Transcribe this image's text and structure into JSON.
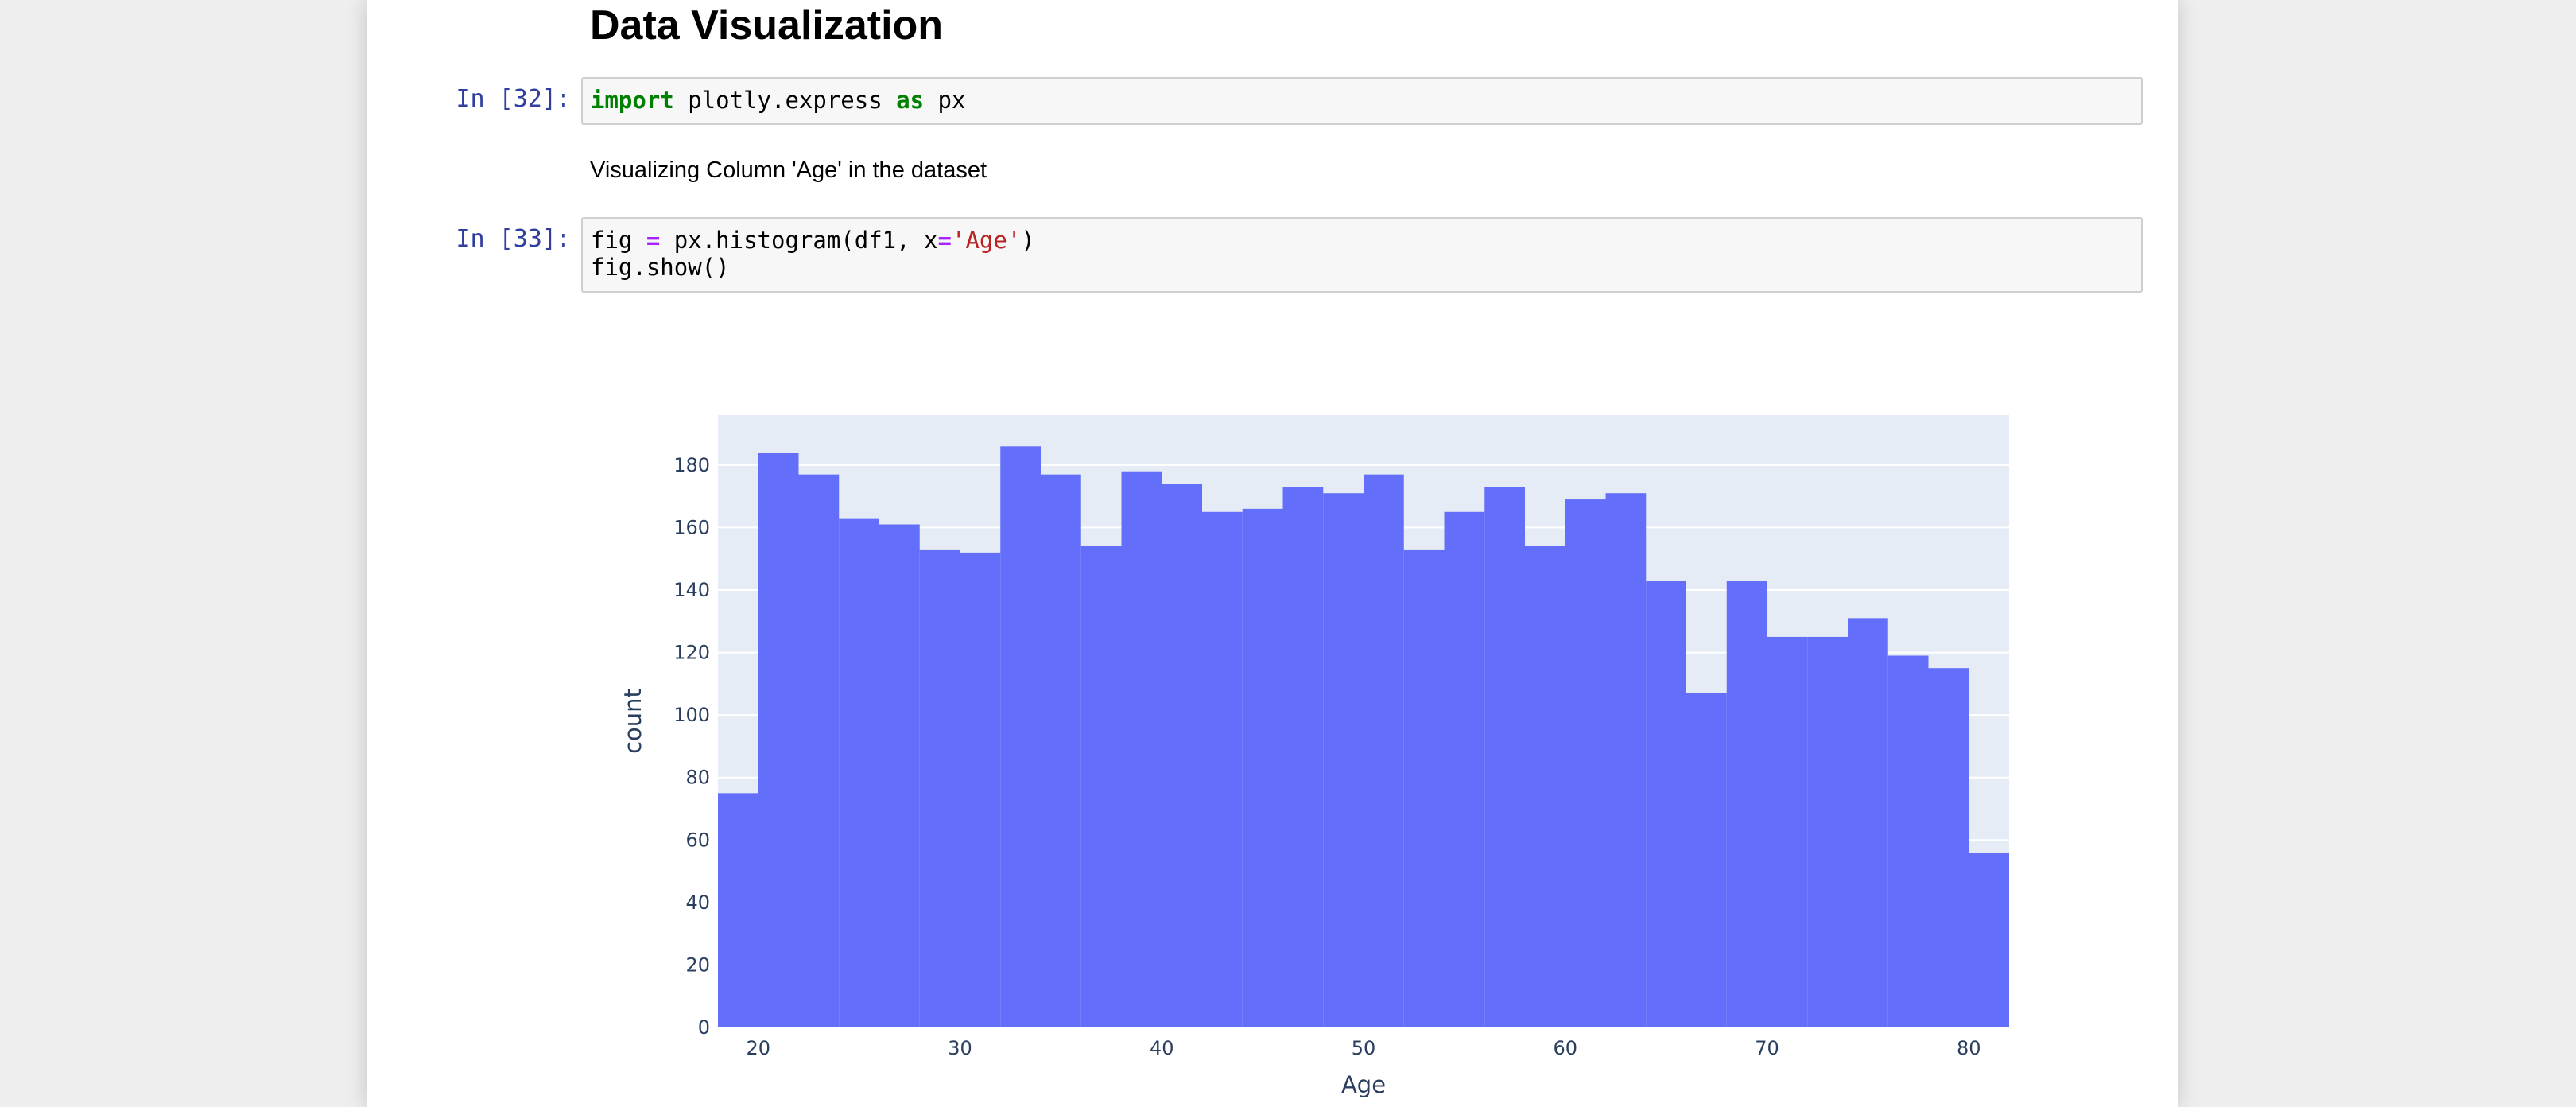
{
  "notebook": {
    "heading": "Data Visualization",
    "cells": [
      {
        "prompt": "In [32]:",
        "code_tokens": [
          {
            "text": "import",
            "kind": "kw"
          },
          {
            "text": " plotly.express ",
            "kind": "plain"
          },
          {
            "text": "as",
            "kind": "kw"
          },
          {
            "text": " px",
            "kind": "plain"
          }
        ]
      },
      {
        "prompt": "In [33]:",
        "line1_tokens": [
          {
            "text": "fig ",
            "kind": "plain"
          },
          {
            "text": "=",
            "kind": "op"
          },
          {
            "text": " px.histogram(df1, x",
            "kind": "plain"
          },
          {
            "text": "=",
            "kind": "op"
          },
          {
            "text": "'Age'",
            "kind": "str"
          },
          {
            "text": ")",
            "kind": "plain"
          }
        ],
        "line2": "fig.show()"
      }
    ],
    "markdown_text": "Visualizing Column 'Age' in the dataset"
  },
  "chart_data": {
    "type": "bar",
    "bin_start": 18,
    "bin_width": 2,
    "x": [
      19,
      21,
      23,
      25,
      27,
      29,
      31,
      33,
      35,
      37,
      39,
      41,
      43,
      45,
      47,
      49,
      51,
      53,
      55,
      57,
      59,
      61,
      63,
      65,
      67,
      69,
      71,
      73,
      75,
      77,
      79,
      81
    ],
    "values": [
      75,
      184,
      177,
      163,
      161,
      153,
      152,
      186,
      177,
      154,
      178,
      174,
      165,
      166,
      173,
      171,
      177,
      153,
      165,
      173,
      154,
      169,
      171,
      143,
      107,
      143,
      125,
      125,
      131,
      119,
      115,
      56
    ],
    "xlabel": "Age",
    "ylabel": "count",
    "xlim": [
      18,
      82
    ],
    "ylim": [
      0,
      196
    ],
    "xticks": [
      20,
      30,
      40,
      50,
      60,
      70,
      80
    ],
    "yticks": [
      0,
      20,
      40,
      60,
      80,
      100,
      120,
      140,
      160,
      180
    ],
    "grid": true,
    "bar_color": "#636efa",
    "plot_bg": "#e5ecf6"
  }
}
